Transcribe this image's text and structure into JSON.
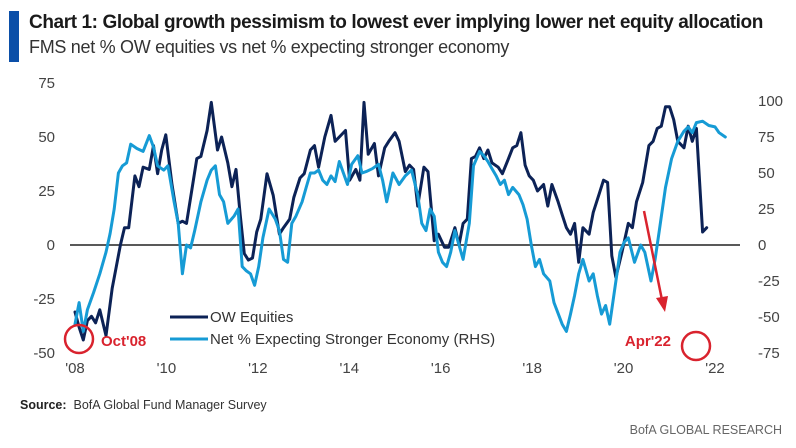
{
  "header": {
    "title": "Chart 1: Global growth pessimism to lowest ever implying lower net equity allocation",
    "subtitle": "FMS net % OW equities vs net % expecting stronger economy",
    "accent_color": "#0b4fa8"
  },
  "footer": {
    "source_label": "Source:",
    "source_text": "BofA Global Fund Manager Survey",
    "brand": "BofA GLOBAL RESEARCH"
  },
  "chart_data": {
    "type": "line",
    "title": "Chart 1: Global growth pessimism to lowest ever implying lower net equity allocation",
    "subtitle": "FMS net % OW equities vs net % expecting stronger economy",
    "xlabel": "",
    "ylabel_left": "",
    "ylabel_right": "",
    "x_range": [
      2008.0,
      2022.5
    ],
    "x_ticks": [
      2008,
      2010,
      2012,
      2014,
      2016,
      2018,
      2020,
      2022
    ],
    "x_tick_labels": [
      "'08",
      "'10",
      "'12",
      "'14",
      "'16",
      "'18",
      "'20",
      "'22"
    ],
    "y_left_range": [
      -50,
      75
    ],
    "y_left_ticks": [
      -50,
      -25,
      0,
      25,
      50,
      75
    ],
    "y_right_range": [
      -75,
      100
    ],
    "y_right_ticks": [
      -75,
      -50,
      -25,
      0,
      25,
      50,
      75,
      100
    ],
    "zero_line": true,
    "grid": false,
    "legend_position": "bottom-center",
    "series": [
      {
        "name": "OW Equities",
        "axis": "left",
        "color": "#0c2256",
        "points": [
          [
            2008.0,
            -31
          ],
          [
            2008.1,
            -38
          ],
          [
            2008.2,
            -44
          ],
          [
            2008.3,
            -35
          ],
          [
            2008.4,
            -33
          ],
          [
            2008.5,
            -36
          ],
          [
            2008.6,
            -30
          ],
          [
            2008.75,
            -42
          ],
          [
            2008.9,
            -20
          ],
          [
            2009.0,
            -10
          ],
          [
            2009.1,
            0
          ],
          [
            2009.2,
            8
          ],
          [
            2009.3,
            8
          ],
          [
            2009.45,
            32
          ],
          [
            2009.55,
            27
          ],
          [
            2009.65,
            36
          ],
          [
            2009.8,
            35
          ],
          [
            2009.9,
            46
          ],
          [
            2010.0,
            33
          ],
          [
            2010.1,
            44
          ],
          [
            2010.2,
            51
          ],
          [
            2010.35,
            28
          ],
          [
            2010.5,
            10
          ],
          [
            2010.6,
            11
          ],
          [
            2010.7,
            10
          ],
          [
            2010.85,
            28
          ],
          [
            2010.95,
            40
          ],
          [
            2011.05,
            41
          ],
          [
            2011.2,
            53
          ],
          [
            2011.3,
            66
          ],
          [
            2011.45,
            44
          ],
          [
            2011.55,
            50
          ],
          [
            2011.7,
            38
          ],
          [
            2011.8,
            27
          ],
          [
            2011.9,
            35
          ],
          [
            2012.0,
            14
          ],
          [
            2012.1,
            -4
          ],
          [
            2012.2,
            -7
          ],
          [
            2012.3,
            -6
          ],
          [
            2012.4,
            6
          ],
          [
            2012.5,
            12
          ],
          [
            2012.65,
            33
          ],
          [
            2012.8,
            23
          ],
          [
            2012.95,
            5
          ],
          [
            2013.05,
            8
          ],
          [
            2013.2,
            12
          ],
          [
            2013.3,
            22
          ],
          [
            2013.45,
            31
          ],
          [
            2013.55,
            33
          ],
          [
            2013.7,
            44
          ],
          [
            2013.8,
            46
          ],
          [
            2013.9,
            36
          ],
          [
            2014.05,
            50
          ],
          [
            2014.2,
            60
          ],
          [
            2014.3,
            48
          ],
          [
            2014.4,
            50
          ],
          [
            2014.55,
            53
          ],
          [
            2014.65,
            30
          ],
          [
            2014.8,
            35
          ],
          [
            2014.9,
            30
          ],
          [
            2015.0,
            66
          ],
          [
            2015.1,
            42
          ],
          [
            2015.25,
            47
          ],
          [
            2015.35,
            32
          ],
          [
            2015.5,
            45
          ],
          [
            2015.6,
            48
          ],
          [
            2015.75,
            52
          ],
          [
            2015.85,
            48
          ],
          [
            2016.0,
            34
          ],
          [
            2016.1,
            37
          ],
          [
            2016.2,
            35
          ],
          [
            2016.3,
            18
          ],
          [
            2016.45,
            36
          ],
          [
            2016.55,
            34
          ],
          [
            2016.7,
            2
          ],
          [
            2016.8,
            5
          ],
          [
            2016.95,
            -1
          ],
          [
            2017.05,
            -1
          ],
          [
            2017.2,
            8
          ],
          [
            2017.3,
            0
          ],
          [
            2017.4,
            10
          ],
          [
            2017.5,
            12
          ],
          [
            2017.6,
            40
          ],
          [
            2017.7,
            41
          ],
          [
            2017.8,
            45
          ],
          [
            2017.9,
            40
          ],
          [
            2018.0,
            44
          ],
          [
            2018.1,
            38
          ],
          [
            2018.25,
            36
          ],
          [
            2018.35,
            33
          ],
          [
            2018.5,
            40
          ],
          [
            2018.6,
            45
          ],
          [
            2018.7,
            46
          ],
          [
            2018.8,
            52
          ],
          [
            2018.9,
            37
          ],
          [
            2019.0,
            32
          ],
          [
            2019.1,
            30
          ],
          [
            2019.2,
            25
          ],
          [
            2019.35,
            28
          ],
          [
            2019.45,
            18
          ],
          [
            2019.55,
            28
          ],
          [
            2019.7,
            20
          ],
          [
            2019.8,
            14
          ],
          [
            2019.9,
            8
          ],
          [
            2020.0,
            5
          ],
          [
            2020.1,
            10
          ],
          [
            2020.2,
            -8
          ],
          [
            2020.3,
            8
          ],
          [
            2020.45,
            5
          ],
          [
            2020.55,
            15
          ],
          [
            2020.7,
            24
          ],
          [
            2020.8,
            30
          ],
          [
            2020.9,
            29
          ],
          [
            2021.0,
            -5
          ],
          [
            2021.1,
            -15
          ],
          [
            2021.25,
            -3
          ],
          [
            2021.4,
            10
          ],
          [
            2021.5,
            8
          ],
          [
            2021.6,
            20
          ],
          [
            2021.75,
            29
          ],
          [
            2021.9,
            46
          ],
          [
            2022.0,
            48
          ],
          [
            2022.1,
            54
          ],
          [
            2022.2,
            55
          ],
          [
            2022.3,
            64
          ],
          [
            2022.4,
            64
          ],
          [
            2022.5,
            58
          ],
          [
            2022.6,
            48
          ],
          [
            2022.75,
            45
          ],
          [
            2022.85,
            55
          ],
          [
            2022.95,
            48
          ],
          [
            2023.05,
            54
          ],
          [
            2023.2,
            6
          ],
          [
            2023.3,
            8
          ]
        ]
      },
      {
        "name": "Net % Expecting Stronger Economy (RHS)",
        "axis": "right",
        "color": "#169bd5",
        "points": [
          [
            2008.0,
            -55
          ],
          [
            2008.1,
            -40
          ],
          [
            2008.2,
            -60
          ],
          [
            2008.3,
            -45
          ],
          [
            2008.45,
            -33
          ],
          [
            2008.6,
            -20
          ],
          [
            2008.75,
            -5
          ],
          [
            2008.85,
            8
          ],
          [
            2008.95,
            25
          ],
          [
            2009.05,
            50
          ],
          [
            2009.15,
            55
          ],
          [
            2009.25,
            57
          ],
          [
            2009.35,
            70
          ],
          [
            2009.5,
            67
          ],
          [
            2009.65,
            65
          ],
          [
            2009.8,
            76
          ],
          [
            2009.9,
            68
          ],
          [
            2010.0,
            55
          ],
          [
            2010.15,
            52
          ],
          [
            2010.25,
            55
          ],
          [
            2010.4,
            30
          ],
          [
            2010.5,
            15
          ],
          [
            2010.6,
            -20
          ],
          [
            2010.7,
            0
          ],
          [
            2010.8,
            -2
          ],
          [
            2010.9,
            10
          ],
          [
            2011.05,
            30
          ],
          [
            2011.2,
            45
          ],
          [
            2011.3,
            52
          ],
          [
            2011.4,
            55
          ],
          [
            2011.5,
            35
          ],
          [
            2011.6,
            30
          ],
          [
            2011.7,
            15
          ],
          [
            2011.85,
            20
          ],
          [
            2011.95,
            25
          ],
          [
            2012.05,
            -15
          ],
          [
            2012.15,
            -18
          ],
          [
            2012.25,
            -20
          ],
          [
            2012.35,
            -28
          ],
          [
            2012.45,
            -15
          ],
          [
            2012.55,
            5
          ],
          [
            2012.7,
            25
          ],
          [
            2012.85,
            18
          ],
          [
            2012.95,
            10
          ],
          [
            2013.05,
            -10
          ],
          [
            2013.15,
            -12
          ],
          [
            2013.25,
            15
          ],
          [
            2013.35,
            20
          ],
          [
            2013.5,
            30
          ],
          [
            2013.6,
            40
          ],
          [
            2013.7,
            50
          ],
          [
            2013.8,
            50
          ],
          [
            2013.9,
            52
          ],
          [
            2014.0,
            45
          ],
          [
            2014.1,
            42
          ],
          [
            2014.2,
            48
          ],
          [
            2014.3,
            44
          ],
          [
            2014.4,
            58
          ],
          [
            2014.5,
            50
          ],
          [
            2014.6,
            42
          ],
          [
            2014.7,
            56
          ],
          [
            2014.85,
            62
          ],
          [
            2014.95,
            50
          ],
          [
            2015.05,
            51
          ],
          [
            2015.2,
            53
          ],
          [
            2015.35,
            56
          ],
          [
            2015.45,
            45
          ],
          [
            2015.55,
            30
          ],
          [
            2015.7,
            50
          ],
          [
            2015.85,
            42
          ],
          [
            2016.0,
            48
          ],
          [
            2016.15,
            52
          ],
          [
            2016.3,
            35
          ],
          [
            2016.4,
            15
          ],
          [
            2016.5,
            10
          ],
          [
            2016.6,
            25
          ],
          [
            2016.7,
            20
          ],
          [
            2016.8,
            -5
          ],
          [
            2016.9,
            -12
          ],
          [
            2017.0,
            -15
          ],
          [
            2017.1,
            -5
          ],
          [
            2017.2,
            10
          ],
          [
            2017.3,
            0
          ],
          [
            2017.4,
            -10
          ],
          [
            2017.55,
            15
          ],
          [
            2017.65,
            55
          ],
          [
            2017.8,
            65
          ],
          [
            2017.9,
            62
          ],
          [
            2018.0,
            58
          ],
          [
            2018.1,
            53
          ],
          [
            2018.2,
            48
          ],
          [
            2018.3,
            42
          ],
          [
            2018.4,
            45
          ],
          [
            2018.5,
            35
          ],
          [
            2018.6,
            40
          ],
          [
            2018.75,
            35
          ],
          [
            2018.85,
            28
          ],
          [
            2018.95,
            18
          ],
          [
            2019.05,
            0
          ],
          [
            2019.15,
            -15
          ],
          [
            2019.25,
            -10
          ],
          [
            2019.35,
            -20
          ],
          [
            2019.5,
            -25
          ],
          [
            2019.6,
            -40
          ],
          [
            2019.8,
            -55
          ],
          [
            2019.9,
            -60
          ],
          [
            2020.0,
            -48
          ],
          [
            2020.1,
            -35
          ],
          [
            2020.2,
            -20
          ],
          [
            2020.3,
            -10
          ],
          [
            2020.45,
            -25
          ],
          [
            2020.55,
            -20
          ],
          [
            2020.65,
            -35
          ],
          [
            2020.75,
            -48
          ],
          [
            2020.85,
            -42
          ],
          [
            2020.95,
            -55
          ],
          [
            2021.1,
            -25
          ],
          [
            2021.2,
            -5
          ],
          [
            2021.3,
            2
          ],
          [
            2021.4,
            5
          ],
          [
            2021.55,
            -12
          ],
          [
            2021.7,
            0
          ],
          [
            2021.8,
            -5
          ],
          [
            2021.95,
            -25
          ],
          [
            2022.05,
            -10
          ],
          [
            2022.15,
            10
          ],
          [
            2022.3,
            40
          ],
          [
            2022.45,
            60
          ],
          [
            2022.6,
            72
          ],
          [
            2022.75,
            79
          ],
          [
            2022.85,
            82
          ],
          [
            2022.95,
            78
          ],
          [
            2023.05,
            85
          ],
          [
            2023.2,
            86
          ],
          [
            2023.35,
            83
          ],
          [
            2023.5,
            82
          ],
          [
            2023.6,
            78
          ],
          [
            2023.75,
            75
          ]
        ]
      }
    ],
    "annotations": [
      {
        "text": "Oct'08",
        "series": "OW Equities",
        "target_x": 2008.2,
        "type": "circle-label",
        "color": "#d9232e"
      },
      {
        "text": "Apr'22",
        "series": "Net % Expecting Stronger Economy (RHS)",
        "target_x": 2022.3,
        "type": "circle-label",
        "color": "#d9232e"
      },
      {
        "text": "",
        "type": "arrow",
        "direction": "down",
        "color": "#d9232e"
      }
    ]
  }
}
